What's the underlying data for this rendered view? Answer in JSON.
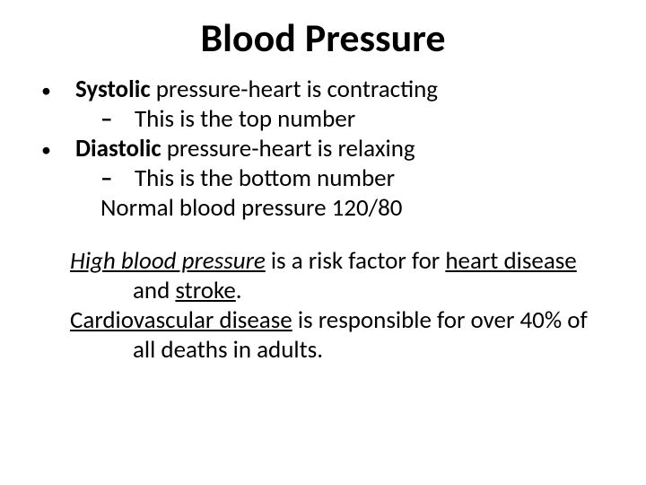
{
  "slide": {
    "title": "Blood Pressure",
    "title_fontsize": 44,
    "body_fontsize": 27,
    "background_color": "#ffffff",
    "text_color": "#000000",
    "bullets": [
      {
        "bold_lead": "Systolic",
        "rest": " pressure-heart is contracting",
        "sub": "This is the top number"
      },
      {
        "bold_lead": "Diastolic",
        "rest": " pressure-heart is relaxing",
        "sub": "This is the bottom number"
      }
    ],
    "normal_line": "Normal blood pressure 120/80",
    "para1": {
      "ital_under_lead": "High blood pressure",
      "mid1": " is a risk factor for ",
      "u1": "heart disease",
      "mid2": " and ",
      "u2": "stroke",
      "tail": "."
    },
    "para2": {
      "u_lead": "Cardiovascular disease",
      "rest": " is responsible for over 40% of all deaths in adults."
    },
    "bullet_glyph": "•",
    "dash_glyph": "–"
  }
}
